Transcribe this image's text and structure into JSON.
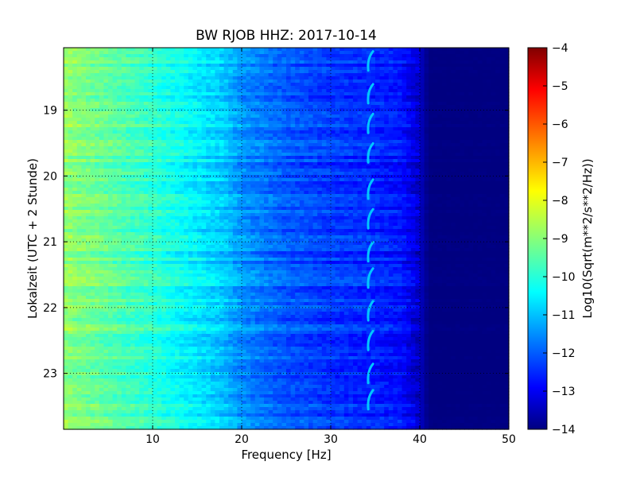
{
  "chart_data": {
    "type": "heatmap",
    "title": "BW RJOB HHZ: 2017-10-14",
    "xlabel": "Frequency [Hz]",
    "ylabel": "Lokalzeit (UTC + 2 Stunde)",
    "xlim": [
      0,
      50
    ],
    "ylim": [
      18.05,
      23.85
    ],
    "y_inverted": true,
    "x_ticks": [
      10,
      20,
      30,
      40,
      50
    ],
    "x_tick_labels": [
      "10",
      "20",
      "30",
      "40",
      "50"
    ],
    "y_ticks": [
      19,
      20,
      21,
      22,
      23
    ],
    "y_tick_labels": [
      "19",
      "20",
      "21",
      "22",
      "23"
    ],
    "grid": true,
    "colormap": "jet",
    "colorbar": {
      "label": "Log10(Sqrt(m**2/s**2/Hz))",
      "range": [
        -14,
        -4
      ],
      "ticks": [
        -4,
        -5,
        -6,
        -7,
        -8,
        -9,
        -10,
        -11,
        -12,
        -13,
        -14
      ],
      "tick_labels": [
        "−4",
        "−5",
        "−6",
        "−7",
        "−8",
        "−9",
        "−10",
        "−11",
        "−12",
        "−13",
        "−14"
      ]
    },
    "frequency_profile": {
      "frequency_hz": [
        0,
        2,
        5,
        10,
        15,
        18,
        20,
        25,
        30,
        35,
        38,
        40,
        41,
        50
      ],
      "value": [
        -8.8,
        -9.0,
        -9.3,
        -9.8,
        -10.4,
        -10.8,
        -11.3,
        -11.9,
        -12.2,
        -12.4,
        -12.6,
        -13.3,
        -14.0,
        -14.0
      ]
    },
    "periodic_feature": {
      "frequency_hz": 34.3,
      "times": [
        18.25,
        18.75,
        19.2,
        19.65,
        20.2,
        20.65,
        21.15,
        21.55,
        22.05,
        22.5,
        23.0,
        23.4
      ],
      "value": -10.8
    }
  }
}
